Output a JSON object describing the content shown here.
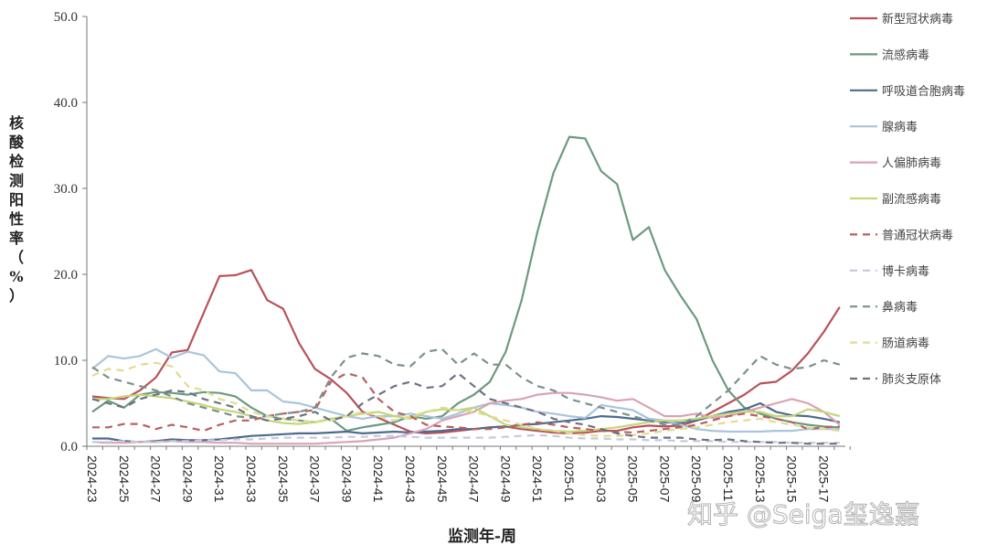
{
  "chart_data": {
    "type": "line",
    "title": "",
    "xlabel": "监测年-周",
    "ylabel": "核酸检测阳性率（%）",
    "ylim": [
      0,
      50
    ],
    "yticks": [
      "0.0",
      "10.0",
      "20.0",
      "30.0",
      "40.0",
      "50.0"
    ],
    "grid": false,
    "legend_position": "right",
    "x": [
      "2024-23",
      "2024-24",
      "2024-25",
      "2024-26",
      "2024-27",
      "2024-28",
      "2024-29",
      "2024-30",
      "2024-31",
      "2024-32",
      "2024-33",
      "2024-34",
      "2024-35",
      "2024-36",
      "2024-37",
      "2024-38",
      "2024-39",
      "2024-40",
      "2024-41",
      "2024-42",
      "2024-43",
      "2024-44",
      "2024-45",
      "2024-46",
      "2024-47",
      "2024-48",
      "2024-49",
      "2024-50",
      "2024-51",
      "2024-52",
      "2025-01",
      "2025-02",
      "2025-03",
      "2025-04",
      "2025-05",
      "2025-06",
      "2025-07",
      "2025-08",
      "2025-09",
      "2025-10",
      "2025-11",
      "2025-12",
      "2025-13",
      "2025-14",
      "2025-15",
      "2025-16",
      "2025-17",
      "2025-18"
    ],
    "xtick_labels": [
      "2024-23",
      "2024-25",
      "2024-27",
      "2024-29",
      "2024-31",
      "2024-33",
      "2024-35",
      "2024-37",
      "2024-39",
      "2024-41",
      "2024-43",
      "2024-45",
      "2024-47",
      "2024-49",
      "2024-51",
      "2025-01",
      "2025-03",
      "2025-05",
      "2025-07",
      "2025-09",
      "2025-11",
      "2025-13",
      "2025-15",
      "2025-17"
    ],
    "series": [
      {
        "name": "新型冠状病毒",
        "color": "#b8525a",
        "dash": false,
        "values": [
          5.8,
          5.6,
          5.5,
          6.5,
          8,
          10.9,
          11.2,
          15.5,
          19.8,
          19.9,
          20.5,
          17,
          16,
          12,
          9,
          7.8,
          6.2,
          4,
          3.3,
          2.5,
          1.7,
          1.5,
          1.6,
          1.8,
          2,
          2.2,
          2.3,
          2,
          1.8,
          1.6,
          1.5,
          1.6,
          1.8,
          1.8,
          2.2,
          2.4,
          2.3,
          2.4,
          3,
          4,
          5,
          6,
          7.3,
          7.5,
          8.8,
          10.8,
          13.3,
          16.2
        ]
      },
      {
        "name": "流感病毒",
        "color": "#6b9a80",
        "dash": false,
        "values": [
          4,
          5.3,
          4.5,
          6,
          6.3,
          6.2,
          6,
          6.3,
          6.2,
          5.8,
          4.5,
          3.5,
          3.2,
          3,
          2.8,
          3.2,
          1.8,
          2.2,
          2.5,
          2.8,
          3.5,
          3.2,
          3.5,
          5,
          6,
          7.5,
          11,
          17,
          25,
          31.8,
          36,
          35.8,
          32,
          30.5,
          24,
          25.5,
          20.5,
          17.5,
          14.8,
          10,
          6.5,
          4.5,
          3.8,
          3.2,
          2.8,
          2.5,
          2.3,
          2.2
        ]
      },
      {
        "name": "呼吸道合胞病毒",
        "color": "#4d6b8e",
        "dash": false,
        "values": [
          0.9,
          0.9,
          0.6,
          0.5,
          0.6,
          0.8,
          0.7,
          0.7,
          0.8,
          1,
          1.2,
          1.3,
          1.4,
          1.5,
          1.5,
          1.6,
          1.7,
          1.5,
          1.6,
          1.7,
          1.6,
          1.7,
          1.8,
          2,
          2,
          2.2,
          2.3,
          2.5,
          2.6,
          2.8,
          3,
          3.2,
          3.5,
          3.4,
          3.2,
          3,
          2.8,
          2.7,
          3,
          3.5,
          4,
          4.3,
          5,
          4,
          3.6,
          3.5,
          3.2,
          2.8
        ]
      },
      {
        "name": "腺病毒",
        "color": "#a9c4dc",
        "dash": false,
        "values": [
          9,
          10.5,
          10.2,
          10.5,
          11.3,
          10.3,
          11,
          10.6,
          8.7,
          8.5,
          6.5,
          6.5,
          5.2,
          5,
          4.5,
          4,
          3.5,
          3.2,
          3.5,
          3.5,
          3.8,
          3.5,
          3.2,
          3.8,
          4.5,
          5,
          4.8,
          4.5,
          4,
          3.8,
          3.5,
          3.3,
          4.8,
          4.5,
          4.2,
          3.2,
          3,
          2.5,
          2,
          1.8,
          1.7,
          1.7,
          1.7,
          1.8,
          1.8,
          2,
          2,
          2
        ]
      },
      {
        "name": "人偏肺病毒",
        "color": "#d9a3b3",
        "dash": false,
        "values": [
          0.5,
          0.4,
          0.4,
          0.5,
          0.5,
          0.6,
          0.5,
          0.5,
          0.4,
          0.4,
          0.3,
          0.3,
          0.3,
          0.3,
          0.3,
          0.4,
          0.5,
          0.6,
          0.8,
          1,
          1.5,
          2,
          3,
          3.5,
          4,
          5,
          5.3,
          5.5,
          6,
          6.2,
          6.2,
          6,
          5.7,
          5.3,
          5.5,
          4.5,
          3.5,
          3.5,
          3.8,
          3.3,
          3.5,
          4,
          4.5,
          5,
          5.5,
          5,
          4,
          2.5
        ]
      },
      {
        "name": "副流感病毒",
        "color": "#c5d67a",
        "dash": false,
        "values": [
          5.5,
          5.5,
          5.8,
          6,
          5.8,
          5.6,
          5.2,
          4.8,
          4.3,
          4,
          3.5,
          3,
          2.7,
          2.6,
          2.8,
          3.2,
          3.5,
          3.8,
          4,
          3.5,
          3.2,
          4,
          4.3,
          4.2,
          4.5,
          3.5,
          2.5,
          2.2,
          2,
          1.8,
          1.7,
          1.8,
          2,
          2.2,
          2.5,
          2.8,
          3,
          3,
          3.2,
          3.5,
          3.8,
          4,
          4,
          3.5,
          3.5,
          4.3,
          4,
          3.5
        ]
      },
      {
        "name": "普通冠状病毒",
        "color": "#b86060",
        "dash": true,
        "values": [
          2.2,
          2.2,
          2.6,
          2.6,
          2,
          2.5,
          2.2,
          1.8,
          2.5,
          3,
          3,
          3.5,
          3.8,
          4,
          4.2,
          7.5,
          8.5,
          8,
          5.5,
          4,
          3.5,
          2.5,
          2.3,
          2.2,
          2,
          2,
          2.2,
          2.5,
          2.8,
          2.5,
          2.2,
          2,
          1.8,
          1.7,
          1.6,
          1.8,
          2,
          2.2,
          2.5,
          3,
          3.5,
          3.8,
          3.5,
          3.2,
          2.8,
          2,
          2.2,
          2.3
        ]
      },
      {
        "name": "博卡病毒",
        "color": "#c3cbdb",
        "dash": true,
        "values": [
          0.5,
          0.5,
          0.6,
          0.5,
          0.5,
          0.6,
          0.6,
          0.7,
          0.7,
          0.8,
          0.8,
          0.9,
          1,
          1,
          1,
          1,
          1.1,
          1.1,
          1.2,
          1.2,
          1.1,
          1,
          1,
          1,
          1,
          1,
          1.1,
          1.2,
          1.3,
          1.2,
          1,
          0.9,
          0.9,
          0.8,
          0.8,
          0.7,
          0.7,
          0.6,
          0.6,
          0.6,
          0.5,
          0.5,
          0.5,
          0.5,
          0.4,
          0.4,
          0.4,
          0.4
        ]
      },
      {
        "name": "鼻病毒",
        "color": "#7b9189",
        "dash": true,
        "values": [
          9.2,
          8,
          7.5,
          7,
          6.5,
          5.8,
          5,
          4.5,
          4,
          3.5,
          3.3,
          3.5,
          3.8,
          4,
          4.5,
          8,
          10.3,
          10.8,
          10.5,
          9.5,
          9.3,
          11,
          11.3,
          9.5,
          10.8,
          9.5,
          9.5,
          8,
          7,
          6.5,
          5.5,
          5,
          4.5,
          4,
          3.5,
          3,
          2.5,
          2.5,
          3.5,
          5,
          6.5,
          8.5,
          10.5,
          9.5,
          9,
          9.2,
          10,
          9.5
        ]
      },
      {
        "name": "肠道病毒",
        "color": "#e0dc92",
        "dash": true,
        "values": [
          8.2,
          9,
          8.8,
          9.5,
          9.7,
          9.3,
          7,
          6.5,
          5.5,
          5,
          4,
          3.5,
          3.2,
          3,
          2.8,
          3,
          3.5,
          4,
          3.5,
          3,
          3.5,
          4,
          4.5,
          4.2,
          4,
          3.5,
          3,
          2.5,
          2,
          1.8,
          1.5,
          1.3,
          1.2,
          1.2,
          1.3,
          1.5,
          1.8,
          2,
          2.2,
          2.5,
          2.8,
          3,
          3.2,
          2.8,
          2.5,
          2.2,
          2,
          1.8
        ]
      },
      {
        "name": "肺炎支原体",
        "color": "#6e7282",
        "dash": true,
        "values": [
          5.5,
          5,
          4.5,
          5.5,
          6,
          6.5,
          6.3,
          5.5,
          5,
          4.5,
          3.5,
          3,
          3.2,
          3.5,
          4,
          3,
          3.5,
          5,
          6,
          7,
          7.5,
          6.8,
          7,
          8.5,
          7,
          5.5,
          5,
          4.5,
          4,
          3.2,
          2.8,
          2.5,
          2,
          1.5,
          1.2,
          1,
          1,
          1,
          0.8,
          0.7,
          0.8,
          0.6,
          0.5,
          0.4,
          0.4,
          0.3,
          0.3,
          0.3
        ]
      }
    ]
  },
  "watermark": "知乎 @Seiga玺逸嘉"
}
